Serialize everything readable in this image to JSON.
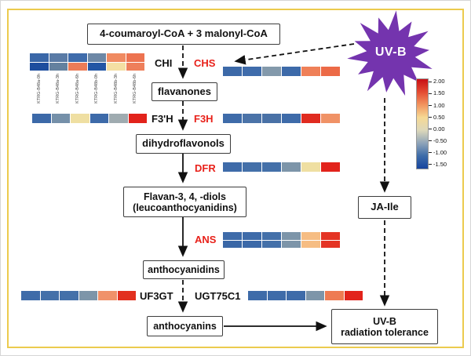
{
  "title_box": "4-coumaroyl-CoA  +  3 malonyl-CoA",
  "uvb": {
    "label": "UV-B",
    "color": "#7434ae"
  },
  "boxes": {
    "flavanones": "flavanones",
    "dihydroflavonols": "dihydroflavonols",
    "flavan_diols_line1": "Flavan-3, 4, -diols",
    "flavan_diols_line2": "(leucoanthocyanidins)",
    "anthocyanidins": "anthocyanidins",
    "anthocyanins": "anthocyanins",
    "ja_ile": "JA-Ile",
    "tolerance_line1": "UV-B",
    "tolerance_line2": "radiation tolerance"
  },
  "enzymes": {
    "chi": {
      "label": "CHI",
      "color": "#111111"
    },
    "chs": {
      "label": "CHS",
      "color": "#e8211a"
    },
    "f3ph": {
      "label": "F3'H",
      "color": "#111111"
    },
    "f3h": {
      "label": "F3H",
      "color": "#e8211a"
    },
    "dfr": {
      "label": "DFR",
      "color": "#e8211a"
    },
    "ans": {
      "label": "ANS",
      "color": "#e8211a"
    },
    "uf3gt": {
      "label": "UF3GT",
      "color": "#111111"
    },
    "ugt75c1": {
      "label": "UGT75C1",
      "color": "#111111"
    }
  },
  "samples": [
    "KTRG-B48a-0h",
    "KTRG-B48a-3h",
    "KTRG-B48a-6h",
    "KTRG-B48b-0h",
    "KTRG-B48b-3h",
    "KTRG-B48b-6h"
  ],
  "chart_data": {
    "type": "heatmap",
    "note": "expression heatmaps; cell colors encode z-score per colorbar",
    "heatmaps": {
      "chi": {
        "rows": [
          [
            "#3a67a8",
            "#5a7ba6",
            "#3f6cab",
            "#6d88a6",
            "#f08a61",
            "#ed7350"
          ],
          [
            "#1d4d9e",
            "#64819f",
            "#ec7c57",
            "#2356a5",
            "#f4dfa3",
            "#ee7f5b"
          ]
        ]
      },
      "chs": {
        "rows": [
          [
            "#3c69a8",
            "#3f6cab",
            "#8399ab",
            "#3d6aa9",
            "#ef8058",
            "#ec6a47"
          ]
        ]
      },
      "f3ph": {
        "rows": [
          [
            "#3c69a8",
            "#7590a9",
            "#efdfa2",
            "#3d6aa9",
            "#9fabb0",
            "#e2231b"
          ]
        ]
      },
      "f3h": {
        "rows": [
          [
            "#3e6ba9",
            "#4b73a8",
            "#4971a6",
            "#3e6ba9",
            "#e02b20",
            "#f09266"
          ]
        ]
      },
      "dfr": {
        "rows": [
          [
            "#3e6ba9",
            "#4470a9",
            "#4470a9",
            "#7d95a9",
            "#efdfa2",
            "#e2231b"
          ]
        ]
      },
      "ans": {
        "rows": [
          [
            "#3e6ba9",
            "#3e6ba9",
            "#4470a9",
            "#7d95a9",
            "#f6bd83",
            "#e43424"
          ],
          [
            "#3a67a6",
            "#3c69a8",
            "#4470a9",
            "#7d95a9",
            "#f6bd83",
            "#e43424"
          ]
        ]
      },
      "uf3gt": {
        "rows": [
          [
            "#3e6ba9",
            "#4470a9",
            "#4470a9",
            "#7d95a9",
            "#f0926a",
            "#e2301f"
          ]
        ]
      },
      "ugt75c1": {
        "rows": [
          [
            "#3e6ba9",
            "#3e6ba9",
            "#3e6ba9",
            "#7d95a9",
            "#ee7b52",
            "#e2231b"
          ]
        ]
      }
    },
    "colorbar": {
      "labels": [
        "2.00",
        "1.50",
        "1.00",
        "0.50",
        "0.00",
        "-0.50",
        "-1.00",
        "-1.50"
      ],
      "stops": [
        "#c80f15",
        "#e44b32",
        "#f2945f",
        "#f6d994",
        "#ddd8ba",
        "#8fa4b9",
        "#3e6ca9",
        "#17459e"
      ],
      "range_top": 2.0,
      "range_bottom": -1.5
    }
  }
}
